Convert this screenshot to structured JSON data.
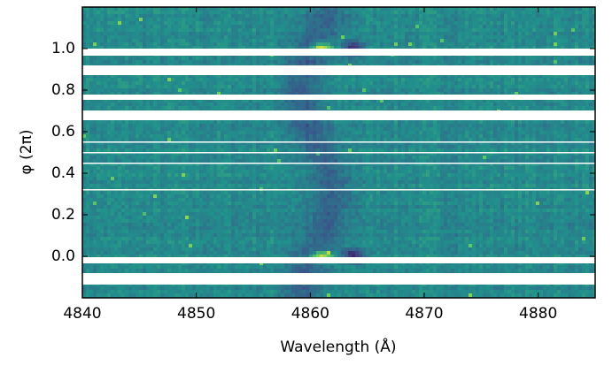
{
  "chart_data": {
    "type": "image",
    "xlabel": "Wavelength (Å)",
    "ylabel": "φ (2π)",
    "xlim": [
      4840,
      4885
    ],
    "xticks": [
      4840,
      4850,
      4860,
      4870,
      4880
    ],
    "ylim": [
      -0.2,
      1.2
    ],
    "yticks": [
      {
        "value": 0,
        "label": "0.0"
      },
      0.2,
      0.4,
      0.6,
      0.8,
      {
        "value": 1,
        "label": "1.0"
      }
    ]
  }
}
